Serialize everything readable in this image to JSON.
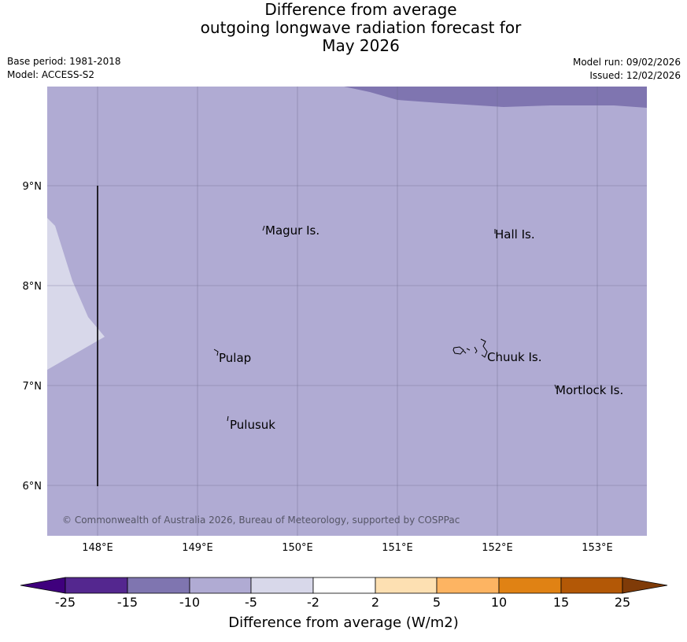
{
  "title": {
    "line1": "Difference from average",
    "line2": "outgoing longwave radiation forecast for",
    "line3": "May 2026"
  },
  "meta": {
    "base_period": "Base period: 1981-2018",
    "model": "Model: ACCESS-S2",
    "model_run": "Model run: 09/02/2026",
    "issued": "Issued: 12/02/2026"
  },
  "map": {
    "lat_labels": [
      "9°N",
      "8°N",
      "7°N",
      "6°N"
    ],
    "lon_labels": [
      "148°E",
      "149°E",
      "150°E",
      "151°E",
      "152°E",
      "153°E"
    ],
    "places": [
      "Magur Is.",
      "Hall Is.",
      "Pulap",
      "Chuuk Is.",
      "Mortlock Is.",
      "Pulusuk"
    ],
    "copyright": "© Commonwealth of Australia 2026, Bureau of Meteorology, supported by COSPPac",
    "colors": {
      "background_fill": "#b0abd3",
      "dark_region": "#7f75b0",
      "light_region": "#d8d8ea"
    }
  },
  "colorbar": {
    "ticks": [
      "-25",
      "-15",
      "-10",
      "-5",
      "-2",
      "2",
      "5",
      "10",
      "15",
      "25"
    ],
    "colors": [
      "#3f007d",
      "#54278f",
      "#7f75b0",
      "#b0abd3",
      "#d8d8ea",
      "#ffffff",
      "#fde0b2",
      "#fdb462",
      "#e08214",
      "#b35806",
      "#7f3b08"
    ],
    "label": "Difference from average (W/m2)"
  }
}
